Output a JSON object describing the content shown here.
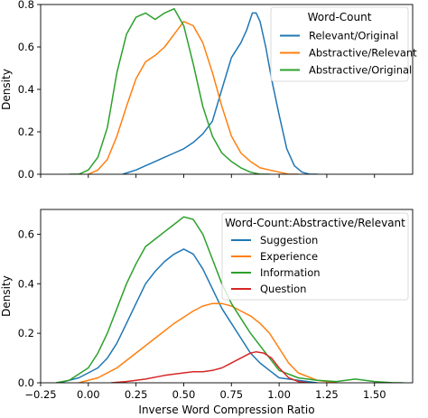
{
  "chart_data": [
    {
      "type": "line",
      "xlim": [
        -0.25,
        1.7
      ],
      "ylim": [
        0,
        0.8
      ],
      "yticks": [
        0.0,
        0.2,
        0.4,
        0.6,
        0.8
      ],
      "ytick_labels": [
        "0.0",
        "0.2",
        "0.4",
        "0.6",
        "0.8"
      ],
      "ylabel": "Density",
      "xlabel": "",
      "grid": false,
      "legend": {
        "title": "Word-Count",
        "placement": "top-right"
      },
      "series": [
        {
          "name": "Relevant/Original",
          "color": "#1f77b4",
          "x": [
            0.18,
            0.25,
            0.3,
            0.35,
            0.4,
            0.45,
            0.5,
            0.55,
            0.6,
            0.65,
            0.7,
            0.75,
            0.8,
            0.83,
            0.86,
            0.88,
            0.9,
            0.93,
            0.96,
            1.0,
            1.04,
            1.08,
            1.12,
            1.16,
            1.2
          ],
          "y": [
            0.0,
            0.02,
            0.04,
            0.06,
            0.08,
            0.1,
            0.12,
            0.15,
            0.19,
            0.25,
            0.4,
            0.55,
            0.62,
            0.68,
            0.76,
            0.76,
            0.72,
            0.6,
            0.45,
            0.28,
            0.12,
            0.04,
            0.01,
            0.0,
            0.0
          ]
        },
        {
          "name": "Abstractive/Relevant",
          "color": "#ff7f0e",
          "x": [
            0.0,
            0.05,
            0.1,
            0.15,
            0.2,
            0.25,
            0.3,
            0.35,
            0.4,
            0.45,
            0.5,
            0.55,
            0.6,
            0.65,
            0.7,
            0.75,
            0.8,
            0.85,
            0.9,
            0.95,
            1.0,
            1.05,
            1.1
          ],
          "y": [
            0.0,
            0.02,
            0.07,
            0.18,
            0.32,
            0.45,
            0.53,
            0.56,
            0.6,
            0.66,
            0.72,
            0.7,
            0.62,
            0.48,
            0.32,
            0.18,
            0.1,
            0.06,
            0.03,
            0.02,
            0.01,
            0.0,
            0.0
          ]
        },
        {
          "name": "Abstractive/Original",
          "color": "#2ca02c",
          "x": [
            -0.1,
            -0.05,
            0.0,
            0.05,
            0.1,
            0.15,
            0.2,
            0.25,
            0.3,
            0.35,
            0.4,
            0.45,
            0.5,
            0.55,
            0.6,
            0.65,
            0.7,
            0.75,
            0.8,
            0.85,
            0.9,
            0.95
          ],
          "y": [
            0.0,
            0.0,
            0.02,
            0.08,
            0.22,
            0.48,
            0.66,
            0.74,
            0.76,
            0.73,
            0.76,
            0.78,
            0.7,
            0.52,
            0.32,
            0.18,
            0.1,
            0.06,
            0.03,
            0.01,
            0.0,
            0.0
          ]
        }
      ]
    },
    {
      "type": "line",
      "xlim": [
        -0.25,
        1.7
      ],
      "ylim": [
        0,
        0.7
      ],
      "yticks": [
        0.0,
        0.2,
        0.4,
        0.6
      ],
      "ytick_labels": [
        "0.0",
        "0.2",
        "0.4",
        "0.6"
      ],
      "xticks": [
        -0.25,
        0.0,
        0.25,
        0.5,
        0.75,
        1.0,
        1.25,
        1.5
      ],
      "xtick_labels": [
        "−0.25",
        "0.00",
        "0.25",
        "0.50",
        "0.75",
        "1.00",
        "1.25",
        "1.50"
      ],
      "ylabel": "Density",
      "xlabel": "Inverse Word Compression Ratio",
      "grid": false,
      "legend": {
        "title": "Word-Count:Abstractive/Relevant",
        "placement": "top-right"
      },
      "series": [
        {
          "name": "Suggestion",
          "color": "#1f77b4",
          "x": [
            -0.15,
            -0.05,
            0.05,
            0.1,
            0.15,
            0.2,
            0.25,
            0.3,
            0.35,
            0.4,
            0.45,
            0.5,
            0.55,
            0.6,
            0.65,
            0.7,
            0.75,
            0.8,
            0.85,
            0.9,
            0.95,
            1.0,
            1.1,
            1.2
          ],
          "y": [
            0.0,
            0.02,
            0.06,
            0.1,
            0.16,
            0.24,
            0.32,
            0.4,
            0.45,
            0.49,
            0.52,
            0.54,
            0.52,
            0.46,
            0.38,
            0.3,
            0.24,
            0.18,
            0.12,
            0.08,
            0.05,
            0.02,
            0.01,
            0.0
          ]
        },
        {
          "name": "Experience",
          "color": "#ff7f0e",
          "x": [
            -0.05,
            0.05,
            0.15,
            0.25,
            0.35,
            0.45,
            0.55,
            0.6,
            0.65,
            0.7,
            0.75,
            0.8,
            0.85,
            0.9,
            0.95,
            1.0,
            1.05,
            1.1,
            1.2,
            1.3
          ],
          "y": [
            0.0,
            0.02,
            0.06,
            0.12,
            0.18,
            0.24,
            0.29,
            0.31,
            0.32,
            0.32,
            0.31,
            0.29,
            0.27,
            0.24,
            0.2,
            0.14,
            0.08,
            0.04,
            0.01,
            0.0
          ]
        },
        {
          "name": "Information",
          "color": "#2ca02c",
          "x": [
            -0.17,
            -0.1,
            0.0,
            0.05,
            0.1,
            0.15,
            0.2,
            0.25,
            0.3,
            0.35,
            0.4,
            0.45,
            0.5,
            0.55,
            0.6,
            0.65,
            0.7,
            0.75,
            0.8,
            0.85,
            0.9,
            0.95,
            1.0,
            1.1,
            1.2,
            1.3,
            1.4,
            1.5,
            1.6,
            1.65
          ],
          "y": [
            0.0,
            0.01,
            0.06,
            0.12,
            0.2,
            0.3,
            0.4,
            0.48,
            0.55,
            0.58,
            0.61,
            0.64,
            0.67,
            0.66,
            0.6,
            0.5,
            0.4,
            0.32,
            0.26,
            0.2,
            0.15,
            0.1,
            0.05,
            0.02,
            0.01,
            0.005,
            0.015,
            0.005,
            0.0,
            0.0
          ]
        },
        {
          "name": "Question",
          "color": "#d62728",
          "x": [
            0.12,
            0.2,
            0.3,
            0.4,
            0.5,
            0.55,
            0.6,
            0.65,
            0.7,
            0.75,
            0.8,
            0.85,
            0.88,
            0.92,
            0.96,
            1.0,
            1.05,
            1.1,
            1.15
          ],
          "y": [
            0.0,
            0.005,
            0.015,
            0.03,
            0.04,
            0.045,
            0.045,
            0.05,
            0.06,
            0.08,
            0.1,
            0.12,
            0.125,
            0.12,
            0.1,
            0.06,
            0.02,
            0.005,
            0.0
          ]
        }
      ]
    }
  ]
}
